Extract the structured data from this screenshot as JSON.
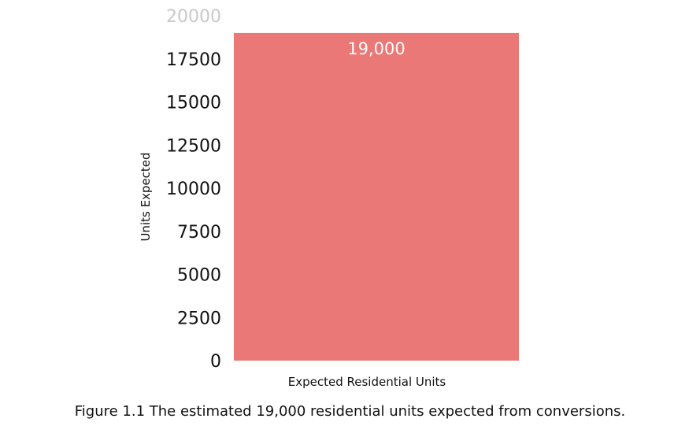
{
  "chart_data": {
    "type": "bar",
    "categories": [
      "Expected Residential Units"
    ],
    "values": [
      19000
    ],
    "data_labels": [
      "19,000"
    ],
    "xlabel": "Expected Residential Units",
    "ylabel": "Units Expected",
    "ylim": [
      0,
      20000
    ],
    "yticks": [
      0,
      2500,
      5000,
      7500,
      10000,
      12500,
      15000,
      17500,
      20000
    ],
    "grid": false,
    "legend": "none",
    "colors": {
      "bar": "#e97876",
      "top_tick": "#c9c9c9",
      "text": "#111111",
      "data_label": "#ffffff"
    }
  },
  "caption": "Figure 1.1 The estimated 19,000 residential units expected from conversions."
}
